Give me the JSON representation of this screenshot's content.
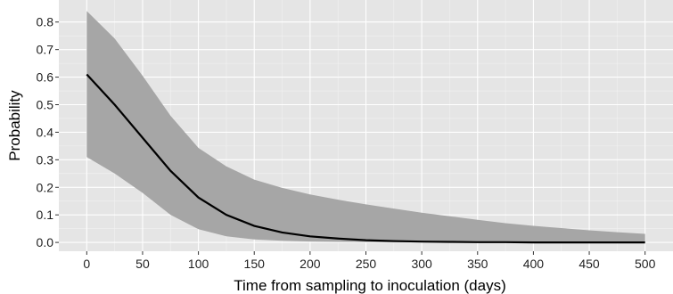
{
  "chart_data": {
    "type": "line",
    "title": "",
    "xlabel": "Time from sampling to inoculation (days)",
    "ylabel": "Probability",
    "xlim": [
      -25,
      525
    ],
    "ylim": [
      -0.032,
      0.88
    ],
    "x_ticks": [
      0,
      50,
      100,
      150,
      200,
      250,
      300,
      350,
      400,
      450,
      500
    ],
    "x_tick_labels": [
      "0",
      "50",
      "100",
      "150",
      "200",
      "250",
      "300",
      "350",
      "400",
      "450",
      "500"
    ],
    "y_ticks": [
      0.0,
      0.1,
      0.2,
      0.3,
      0.4,
      0.5,
      0.6,
      0.7,
      0.8
    ],
    "y_tick_labels": [
      "0.0",
      "0.1",
      "0.2",
      "0.3",
      "0.4",
      "0.5",
      "0.6",
      "0.7",
      "0.8"
    ],
    "grid": true,
    "x": [
      0,
      25,
      50,
      75,
      100,
      125,
      150,
      175,
      200,
      225,
      250,
      275,
      300,
      325,
      350,
      375,
      400,
      425,
      450,
      475,
      500
    ],
    "series": [
      {
        "role": "estimate",
        "values": [
          0.61,
          0.5,
          0.38,
          0.26,
          0.163,
          0.1,
          0.06,
          0.036,
          0.022,
          0.014,
          0.008,
          0.005,
          0.003,
          0.002,
          0.001,
          0.001,
          0.0,
          0.0,
          0.0,
          0.0,
          0.0
        ]
      },
      {
        "role": "ci_upper",
        "values": [
          0.84,
          0.74,
          0.605,
          0.46,
          0.343,
          0.276,
          0.228,
          0.198,
          0.174,
          0.155,
          0.138,
          0.123,
          0.108,
          0.095,
          0.082,
          0.07,
          0.06,
          0.052,
          0.044,
          0.037,
          0.031
        ]
      },
      {
        "role": "ci_lower",
        "values": [
          0.31,
          0.25,
          0.18,
          0.1,
          0.048,
          0.022,
          0.011,
          0.006,
          0.003,
          0.002,
          0.001,
          0.0,
          0.0,
          0.0,
          0.0,
          0.0,
          0.0,
          0.0,
          0.0,
          0.0,
          0.0
        ]
      }
    ],
    "colors": {
      "panel_background": "#e5e5e5",
      "grid_major": "#ffffff",
      "grid_minor": "#f2f2f2",
      "band_fill": "#a6a6a6",
      "line": "#000000"
    }
  }
}
